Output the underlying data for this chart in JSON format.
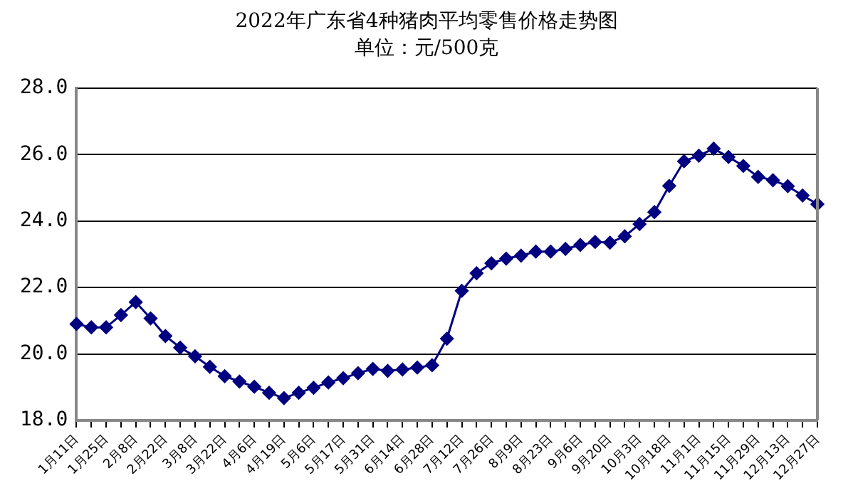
{
  "chart_data": {
    "type": "line",
    "title": "2022年广东省4种猪肉平均零售价格走势图",
    "subtitle": "单位：元/500克",
    "categories": [
      "1月11日",
      null,
      "1月25日",
      null,
      "2月8日",
      null,
      "2月22日",
      null,
      "3月8日",
      null,
      "3月22日",
      null,
      "4月6日",
      null,
      "4月19日",
      null,
      "5月6日",
      null,
      "5月17日",
      null,
      "5月31日",
      null,
      "6月14日",
      null,
      "6月28日",
      null,
      "7月12日",
      null,
      "7月26日",
      null,
      "8月9日",
      null,
      "8月23日",
      null,
      "9月6日",
      null,
      "9月20日",
      null,
      "10月3日",
      null,
      "10月18日",
      null,
      "11月1日",
      null,
      "11月15日",
      null,
      "11月29日",
      null,
      "12月13日",
      null,
      "12月27日"
    ],
    "series": [
      {
        "color": "#000080",
        "values": [
          20.9,
          20.8,
          20.8,
          21.17,
          21.56,
          21.07,
          20.54,
          20.19,
          19.93,
          19.61,
          19.33,
          19.17,
          19.01,
          18.83,
          18.67,
          18.83,
          18.98,
          19.14,
          19.27,
          19.42,
          19.55,
          19.49,
          19.53,
          19.59,
          19.66,
          20.46,
          21.9,
          22.43,
          22.73,
          22.87,
          22.96,
          23.08,
          23.08,
          23.16,
          23.28,
          23.37,
          23.35,
          23.54,
          23.91,
          24.27,
          25.06,
          25.8,
          25.97,
          26.18,
          25.93,
          25.66,
          25.33,
          25.23,
          25.05,
          24.77,
          24.51
        ]
      }
    ],
    "ylim": [
      18,
      28
    ],
    "yticks": [
      {
        "value": 18,
        "label": "18.0"
      },
      {
        "value": 20,
        "label": "20.0"
      },
      {
        "value": 22,
        "label": "22.0"
      },
      {
        "value": 24,
        "label": "24.0"
      },
      {
        "value": 26,
        "label": "26.0"
      },
      {
        "value": 28,
        "label": "28.0"
      }
    ],
    "grid": "y",
    "marker": "diamond",
    "line_style": "solid"
  }
}
